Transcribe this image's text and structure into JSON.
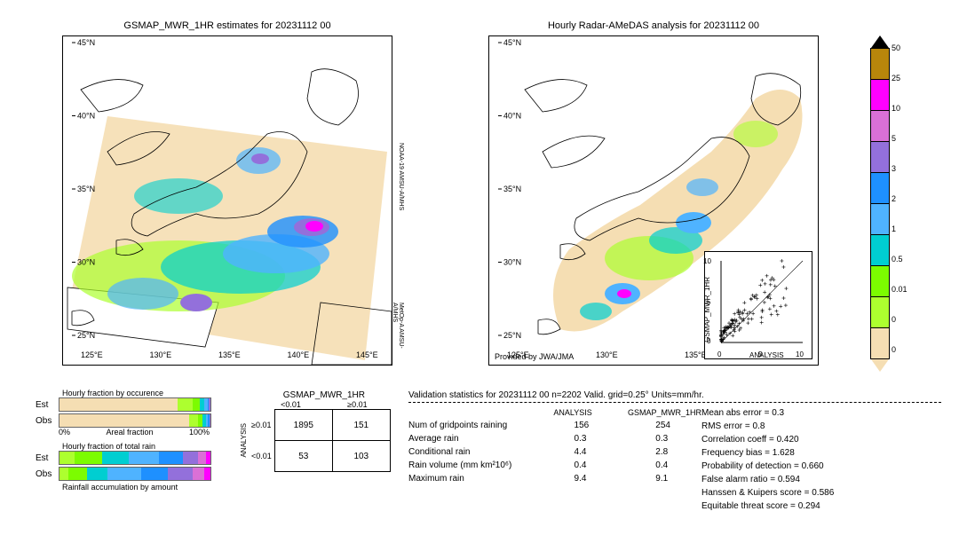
{
  "titles": {
    "left": "GSMAP_MWR_1HR estimates for 20231112 00",
    "right": "Hourly Radar-AMeDAS analysis for 20231112 00"
  },
  "map": {
    "lat_ticks": [
      "25°N",
      "30°N",
      "35°N",
      "40°N",
      "45°N"
    ],
    "lon_ticks_left": [
      "125°E",
      "130°E",
      "135°E",
      "140°E",
      "145°E"
    ],
    "lon_ticks_right": [
      "125°E",
      "130°E",
      "135°E"
    ],
    "provided_by": "Provided by JWA/JMA",
    "sat_labels": [
      "NOAA-19\nAMSU-A/MHS",
      "MetOp-A\nAMSU-A/MHS"
    ]
  },
  "colorbar": {
    "ticks": [
      "50",
      "25",
      "10",
      "5",
      "3",
      "2",
      "1",
      "0.5",
      "0.01",
      "0"
    ],
    "colors": [
      "#b8860b",
      "#ff00ff",
      "#da70d6",
      "#9370db",
      "#1e90ff",
      "#4fb3ff",
      "#00ced1",
      "#7cfc00",
      "#adff2f",
      "#f5deb3"
    ]
  },
  "bars": {
    "occurrence_title": "Hourly fraction by occurence",
    "totalrain_title": "Hourly fraction of total rain",
    "accum_title": "Rainfall accumulation by amount",
    "axis_label": "Areal fraction",
    "rows": [
      "Est",
      "Obs"
    ],
    "axis_min": "0%",
    "axis_max": "100%",
    "est_occ": [
      {
        "c": "#f5deb3",
        "w": 78
      },
      {
        "c": "#adff2f",
        "w": 10
      },
      {
        "c": "#7cfc00",
        "w": 5
      },
      {
        "c": "#00ced1",
        "w": 3
      },
      {
        "c": "#4fb3ff",
        "w": 2
      },
      {
        "c": "#1e90ff",
        "w": 1
      },
      {
        "c": "#9370db",
        "w": 1
      }
    ],
    "obs_occ": [
      {
        "c": "#f5deb3",
        "w": 86
      },
      {
        "c": "#adff2f",
        "w": 6
      },
      {
        "c": "#7cfc00",
        "w": 3
      },
      {
        "c": "#00ced1",
        "w": 2
      },
      {
        "c": "#4fb3ff",
        "w": 1.5
      },
      {
        "c": "#1e90ff",
        "w": 1
      },
      {
        "c": "#9370db",
        "w": 0.5
      }
    ],
    "est_tot": [
      {
        "c": "#adff2f",
        "w": 10
      },
      {
        "c": "#7cfc00",
        "w": 18
      },
      {
        "c": "#00ced1",
        "w": 18
      },
      {
        "c": "#4fb3ff",
        "w": 20
      },
      {
        "c": "#1e90ff",
        "w": 16
      },
      {
        "c": "#9370db",
        "w": 10
      },
      {
        "c": "#da70d6",
        "w": 5
      },
      {
        "c": "#ff00ff",
        "w": 3
      }
    ],
    "obs_tot": [
      {
        "c": "#adff2f",
        "w": 6
      },
      {
        "c": "#7cfc00",
        "w": 12
      },
      {
        "c": "#00ced1",
        "w": 14
      },
      {
        "c": "#4fb3ff",
        "w": 22
      },
      {
        "c": "#1e90ff",
        "w": 18
      },
      {
        "c": "#9370db",
        "w": 16
      },
      {
        "c": "#da70d6",
        "w": 8
      },
      {
        "c": "#ff00ff",
        "w": 4
      }
    ]
  },
  "contingency": {
    "title": "GSMAP_MWR_1HR",
    "col_labels": [
      "<0.01",
      "≥0.01"
    ],
    "row_labels": [
      "≥0.01",
      "<0.01"
    ],
    "axis_label": "ANALYSIS",
    "cells": [
      [
        "1895",
        "151"
      ],
      [
        "53",
        "103"
      ]
    ]
  },
  "scatter": {
    "xlabel": "ANALYSIS",
    "ylabel": "GSMAP_MWR_1HR",
    "lim": [
      0,
      10
    ],
    "ticks": [
      "0",
      "5",
      "10"
    ]
  },
  "validation": {
    "header": "Validation statistics for 20231112 00  n=2202 Valid. grid=0.25° Units=mm/hr.",
    "col_headers": [
      "ANALYSIS",
      "GSMAP_MWR_1HR"
    ],
    "rows": [
      {
        "label": "Num of gridpoints raining",
        "a": "156",
        "b": "254"
      },
      {
        "label": "Average rain",
        "a": "0.3",
        "b": "0.3"
      },
      {
        "label": "Conditional rain",
        "a": "4.4",
        "b": "2.8"
      },
      {
        "label": "Rain volume (mm km²10⁶)",
        "a": "0.4",
        "b": "0.4"
      },
      {
        "label": "Maximum rain",
        "a": "9.4",
        "b": "9.1"
      }
    ],
    "metrics": [
      {
        "label": "Mean abs error =",
        "v": "0.3"
      },
      {
        "label": "RMS error =",
        "v": "0.8"
      },
      {
        "label": "Correlation coeff =",
        "v": "0.420"
      },
      {
        "label": "Frequency bias =",
        "v": "1.628"
      },
      {
        "label": "Probability of detection =",
        "v": "0.660"
      },
      {
        "label": "False alarm ratio =",
        "v": "0.594"
      },
      {
        "label": "Hanssen & Kuipers score =",
        "v": "0.586"
      },
      {
        "label": "Equitable threat score =",
        "v": "0.294"
      }
    ]
  }
}
